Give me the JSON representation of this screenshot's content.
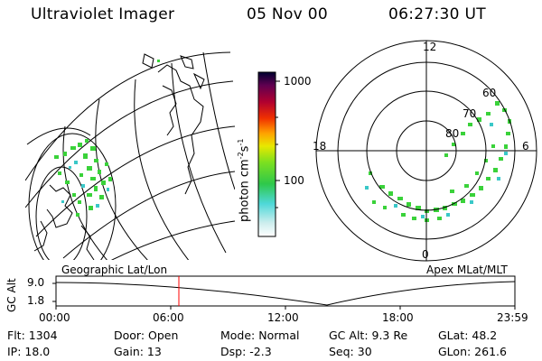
{
  "header": {
    "instrument": "Ultraviolet Imager",
    "date": "05 Nov 00",
    "time": "06:27:30 UT"
  },
  "colorbar": {
    "unit_label": "photon cm^-2s^-1",
    "unit_text": "photon cm",
    "unit_sup1": "-2",
    "unit_s": "s",
    "unit_sup2": "-1",
    "ticks": [
      "1000",
      "100"
    ]
  },
  "left_panel": {
    "caption": "Geographic Lat/Lon"
  },
  "right_panel": {
    "caption": "Apex MLat/MLT",
    "mlt_labels": {
      "top": "12",
      "left": "18",
      "right": "6",
      "bottom": "0"
    },
    "lat_labels": [
      "60",
      "70",
      "80"
    ]
  },
  "altitude_plot": {
    "ylabel": "GC Alt",
    "yticks": [
      "9.0",
      "1.8"
    ],
    "xticks": [
      "00:00",
      "06:00",
      "12:00",
      "18:00",
      "23:59"
    ]
  },
  "status": {
    "flt": "Flt:  1304",
    "ip": "IP: 18.0",
    "door": "Door:  Open",
    "gain": "Gain:  13",
    "mode": "Mode:  Normal",
    "dsp": "Dsp:    -2.3",
    "gcalt": "GC Alt:  9.3 Re",
    "seq": "Seq:  30",
    "glat": "GLat:   48.2",
    "glon": "GLon:  261.6"
  },
  "colors": {
    "aurora_green": "#3ad23a",
    "aurora_cyan": "#3ac8c8",
    "marker_red": "#ff0000"
  }
}
